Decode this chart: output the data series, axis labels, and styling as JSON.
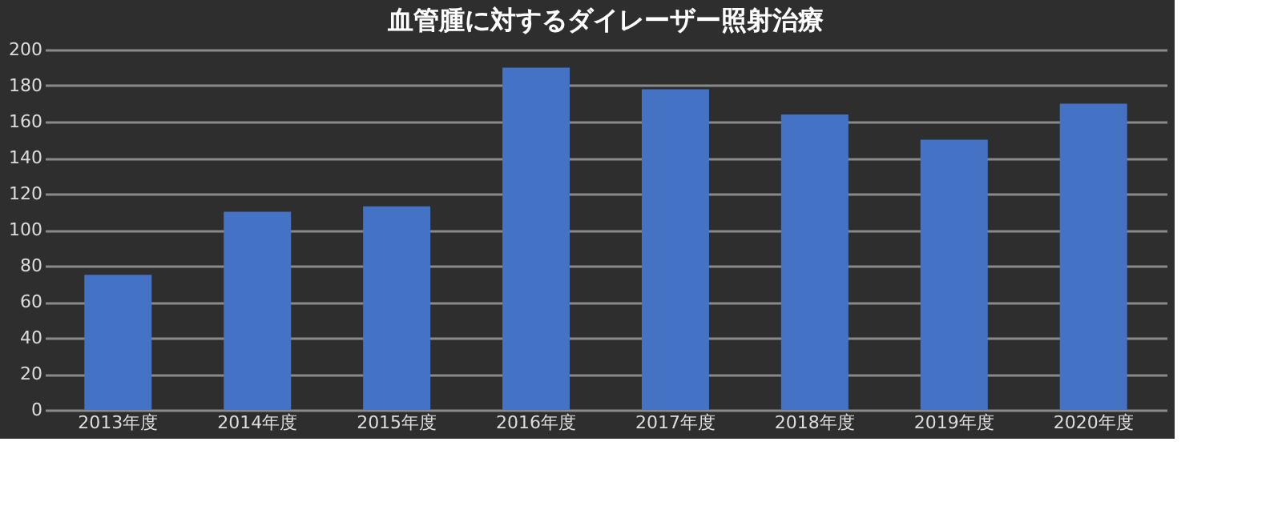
{
  "chart_data": {
    "type": "bar",
    "title": "血管腫に対するダイレーザー照射治療",
    "categories": [
      "2013年度",
      "2014年度",
      "2015年度",
      "2016年度",
      "2017年度",
      "2018年度",
      "2019年度",
      "2020年度"
    ],
    "values": [
      75,
      110,
      113,
      190,
      178,
      164,
      150,
      170
    ],
    "color": "#4472c4",
    "ylim": [
      0,
      200
    ],
    "yticks": [
      0,
      20,
      40,
      60,
      80,
      100,
      120,
      140,
      160,
      180,
      200
    ],
    "grid": "y"
  }
}
